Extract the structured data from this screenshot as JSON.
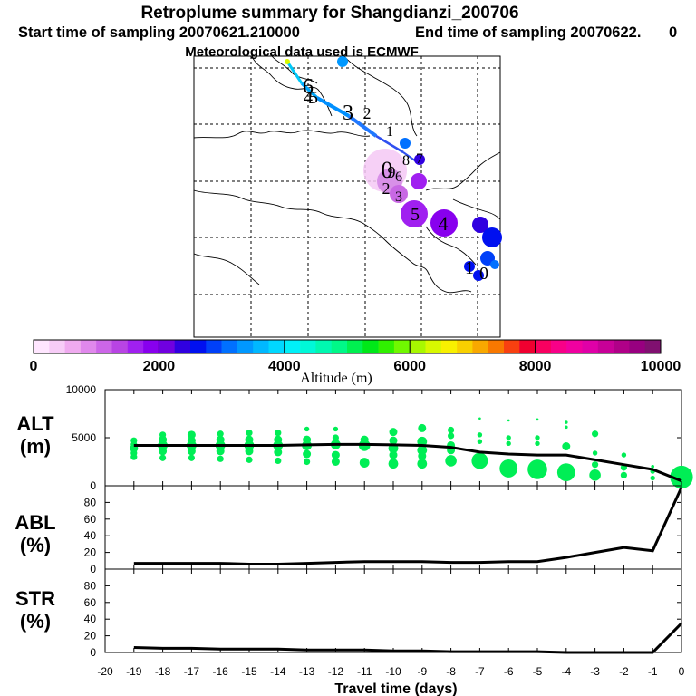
{
  "header": {
    "title": "Retroplume summary for Shangdianzi_200706",
    "start_time": "Start time of sampling 20070621.210000",
    "end_time": "End time of sampling 20070622.",
    "end_time_suffix": "0",
    "met_data": "Meteorological data used is ECMWF"
  },
  "colorbar": {
    "label": "Altitude (m)",
    "tick_labels": [
      "0",
      "2000",
      "4000",
      "6000",
      "8000",
      "10000"
    ],
    "range": [
      0,
      10000
    ],
    "colors": [
      "#ffe6ff",
      "#f7ccf7",
      "#efaaef",
      "#e088ec",
      "#cc66e8",
      "#b844e4",
      "#a020f0",
      "#8800ee",
      "#7000e0",
      "#3000e0",
      "#0010f0",
      "#0040f8",
      "#0070ff",
      "#0098ff",
      "#00b8ff",
      "#00d8ff",
      "#00f0f8",
      "#00f8d8",
      "#00f8b0",
      "#00f888",
      "#00f050",
      "#00e818",
      "#30f000",
      "#70f800",
      "#a8f800",
      "#d8f800",
      "#f8f000",
      "#f8d000",
      "#f8a800",
      "#f87800",
      "#f84010",
      "#f00030",
      "#f80060",
      "#f80088",
      "#f000a0",
      "#e000a8",
      "#c80098",
      "#b00088",
      "#980080",
      "#801070"
    ]
  },
  "map": {
    "trajectory_labels": [
      {
        "text": "6",
        "alt_m": 7400
      },
      {
        "text": "5",
        "alt_m": 6800
      },
      {
        "text": "4",
        "alt_m": 6200
      },
      {
        "text": "3",
        "alt_m": 5600
      },
      {
        "text": "2",
        "alt_m": 5000
      },
      {
        "text": "1",
        "alt_m": 4400
      },
      {
        "text": "0",
        "alt_m": 4200
      },
      {
        "text": "9",
        "alt_m": 4300
      },
      {
        "text": "8",
        "alt_m": 4300
      },
      {
        "text": "7",
        "alt_m": 4200
      },
      {
        "text": "6",
        "alt_m": 4400
      },
      {
        "text": "5",
        "alt_m": 3000
      },
      {
        "text": "4",
        "alt_m": 2500
      },
      {
        "text": "3",
        "alt_m": 3200
      },
      {
        "text": "2",
        "alt_m": 3600
      },
      {
        "text": "1",
        "alt_m": 3800
      },
      {
        "text": "0",
        "alt_m": 4000
      }
    ]
  },
  "panels": {
    "alt": {
      "title": "ALT",
      "unit": "(m)",
      "y_ticks": [
        "10000",
        "5000",
        "0"
      ]
    },
    "abl": {
      "title": "ABL",
      "unit": "(%)",
      "y_ticks": [
        "80",
        "60",
        "40",
        "20",
        "0"
      ]
    },
    "str": {
      "title": "STR",
      "unit": "(%)",
      "y_ticks": [
        "80",
        "60",
        "40",
        "20",
        "0"
      ]
    },
    "x_ticks": [
      "-20",
      "-19",
      "-18",
      "-17",
      "-16",
      "-15",
      "-14",
      "-13",
      "-12",
      "-11",
      "-10",
      "-9",
      "-8",
      "-7",
      "-6",
      "-5",
      "-4",
      "-3",
      "-2",
      "-1",
      "0"
    ],
    "xlabel": "Travel time (days)"
  },
  "chart_data": [
    {
      "type": "scatter",
      "title": "ALT",
      "ylabel": "(m)",
      "xlabel": "Travel time (days)",
      "xlim": [
        -20,
        0
      ],
      "ylim": [
        0,
        10000
      ],
      "mean_line": {
        "x": [
          -19,
          -18,
          -17,
          -16,
          -15,
          -14,
          -13,
          -12,
          -11,
          -10,
          -9,
          -8,
          -7,
          -6,
          -5,
          -4,
          -3,
          -2,
          -1,
          0
        ],
        "y": [
          4200,
          4200,
          4200,
          4200,
          4200,
          4200,
          4250,
          4300,
          4300,
          4250,
          4200,
          4000,
          3500,
          3300,
          3200,
          3200,
          2700,
          2200,
          1700,
          500
        ]
      },
      "clusters": [
        {
          "x": -19,
          "alt": [
            4700,
            4300,
            3900,
            3400,
            3000
          ],
          "weight": [
            0.4,
            0.4,
            0.5,
            0.4,
            0.4
          ]
        },
        {
          "x": -18,
          "alt": [
            5300,
            4800,
            4200,
            3600,
            2900
          ],
          "weight": [
            0.4,
            0.5,
            0.6,
            0.5,
            0.4
          ]
        },
        {
          "x": -17,
          "alt": [
            5300,
            4700,
            4200,
            3600,
            2900
          ],
          "weight": [
            0.5,
            0.5,
            0.6,
            0.5,
            0.4
          ]
        },
        {
          "x": -16,
          "alt": [
            5400,
            4800,
            4200,
            3600,
            2800
          ],
          "weight": [
            0.4,
            0.5,
            0.6,
            0.5,
            0.4
          ]
        },
        {
          "x": -15,
          "alt": [
            5500,
            4800,
            4200,
            3600,
            2700
          ],
          "weight": [
            0.4,
            0.5,
            0.6,
            0.5,
            0.4
          ]
        },
        {
          "x": -14,
          "alt": [
            5500,
            4800,
            4200,
            3500,
            2600
          ],
          "weight": [
            0.4,
            0.5,
            0.6,
            0.5,
            0.4
          ]
        },
        {
          "x": -13,
          "alt": [
            5900,
            4800,
            4200,
            3300,
            2500
          ],
          "weight": [
            0.3,
            0.5,
            0.6,
            0.5,
            0.4
          ]
        },
        {
          "x": -12,
          "alt": [
            5900,
            5000,
            4300,
            3200,
            2500
          ],
          "weight": [
            0.3,
            0.4,
            0.6,
            0.5,
            0.5
          ]
        },
        {
          "x": -11,
          "alt": [
            4800,
            4200,
            2400
          ],
          "weight": [
            0.5,
            0.7,
            0.6
          ]
        },
        {
          "x": -10,
          "alt": [
            5600,
            4700,
            3900,
            3200,
            2300
          ],
          "weight": [
            0.5,
            0.5,
            0.6,
            0.5,
            0.6
          ]
        },
        {
          "x": -9,
          "alt": [
            6000,
            4600,
            3700,
            3100,
            2300
          ],
          "weight": [
            0.5,
            0.6,
            0.6,
            0.5,
            0.6
          ]
        },
        {
          "x": -8,
          "alt": [
            5800,
            5200,
            4200,
            3700,
            2600
          ],
          "weight": [
            0.4,
            0.4,
            0.5,
            0.5,
            0.7
          ]
        },
        {
          "x": -7,
          "alt": [
            7000,
            5300,
            4600,
            3000,
            2600
          ],
          "weight": [
            0.15,
            0.3,
            0.3,
            0.5,
            1.0
          ]
        },
        {
          "x": -6,
          "alt": [
            6800,
            5000,
            4400,
            1800
          ],
          "weight": [
            0.15,
            0.3,
            0.3,
            1.1
          ]
        },
        {
          "x": -5,
          "alt": [
            6900,
            5000,
            4400,
            1700
          ],
          "weight": [
            0.15,
            0.3,
            0.3,
            1.2
          ]
        },
        {
          "x": -4,
          "alt": [
            6600,
            6100,
            4100,
            1400
          ],
          "weight": [
            0.2,
            0.2,
            0.5,
            1.1
          ]
        },
        {
          "x": -3,
          "alt": [
            5400,
            3400,
            2200,
            1100
          ],
          "weight": [
            0.4,
            0.3,
            0.4,
            0.7
          ]
        },
        {
          "x": -2,
          "alt": [
            3200,
            1900,
            1100
          ],
          "weight": [
            0.3,
            0.4,
            0.4
          ]
        },
        {
          "x": -1,
          "alt": [
            2000,
            1500,
            800
          ],
          "weight": [
            0.2,
            0.3,
            0.3
          ]
        },
        {
          "x": 0,
          "alt": [
            900
          ],
          "weight": [
            1.4
          ]
        }
      ]
    },
    {
      "type": "line",
      "title": "ABL",
      "ylabel": "(%)",
      "xlim": [
        -20,
        0
      ],
      "ylim": [
        0,
        100
      ],
      "x": [
        -19,
        -18,
        -17,
        -16,
        -15,
        -14,
        -13,
        -12,
        -11,
        -10,
        -9,
        -8,
        -7,
        -6,
        -5,
        -4,
        -3,
        -2,
        -1,
        0
      ],
      "y": [
        7,
        7,
        7,
        7,
        6,
        6,
        7,
        8,
        9,
        9,
        9,
        8,
        8,
        9,
        9,
        14,
        20,
        26,
        22,
        98
      ]
    },
    {
      "type": "line",
      "title": "STR",
      "ylabel": "(%)",
      "xlim": [
        -20,
        0
      ],
      "ylim": [
        0,
        100
      ],
      "x": [
        -19,
        -18,
        -17,
        -16,
        -15,
        -14,
        -13,
        -12,
        -11,
        -10,
        -9,
        -8,
        -7,
        -6,
        -5,
        -4,
        -3,
        -2,
        -1,
        0
      ],
      "y": [
        6,
        5,
        5,
        4,
        4,
        4,
        3,
        3,
        3,
        2,
        2,
        1,
        1,
        1,
        1,
        0,
        0,
        0,
        0,
        35
      ]
    }
  ]
}
